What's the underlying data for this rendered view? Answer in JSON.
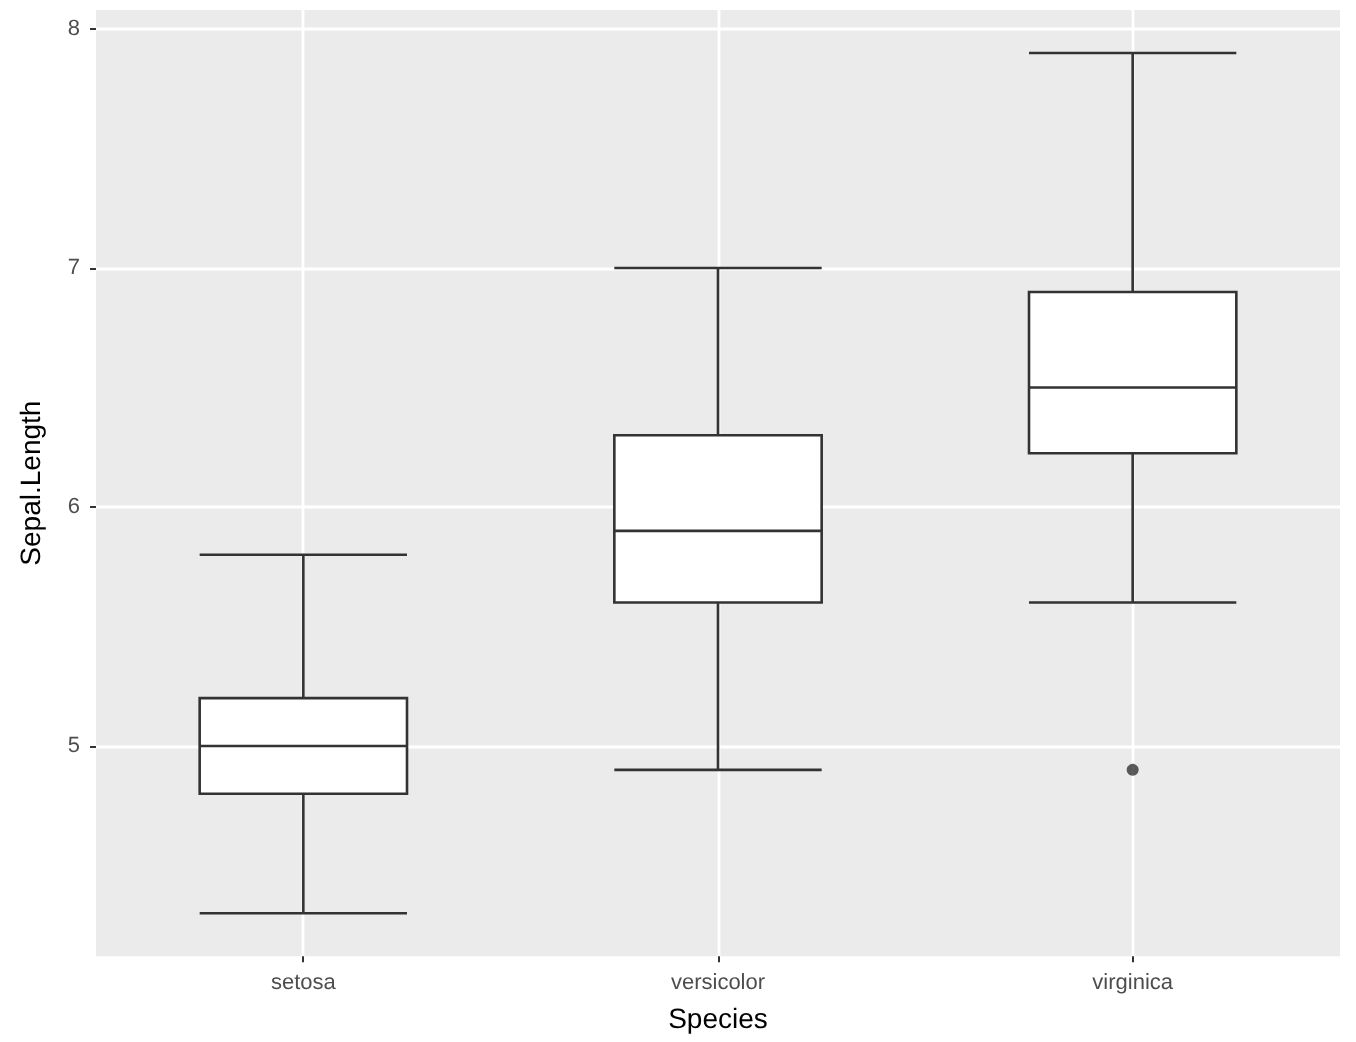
{
  "chart_data": {
    "type": "box",
    "xlabel": "Species",
    "ylabel": "Sepal.Length",
    "categories": [
      "setosa",
      "versicolor",
      "virginica"
    ],
    "boxes": [
      {
        "low": 4.3,
        "q1": 4.8,
        "median": 5.0,
        "q3": 5.2,
        "high": 5.8
      },
      {
        "low": 4.9,
        "q1": 5.6,
        "median": 5.9,
        "q3": 6.3,
        "high": 7.0
      },
      {
        "low": 5.6,
        "q1": 6.225,
        "median": 6.5,
        "q3": 6.9,
        "high": 7.9,
        "outliers": [
          4.9
        ]
      }
    ],
    "color": "#ffffff",
    "ylim": [
      4.12,
      8.08
    ],
    "yticks": [
      5,
      6,
      7,
      8
    ],
    "grid": true,
    "legend": false
  }
}
